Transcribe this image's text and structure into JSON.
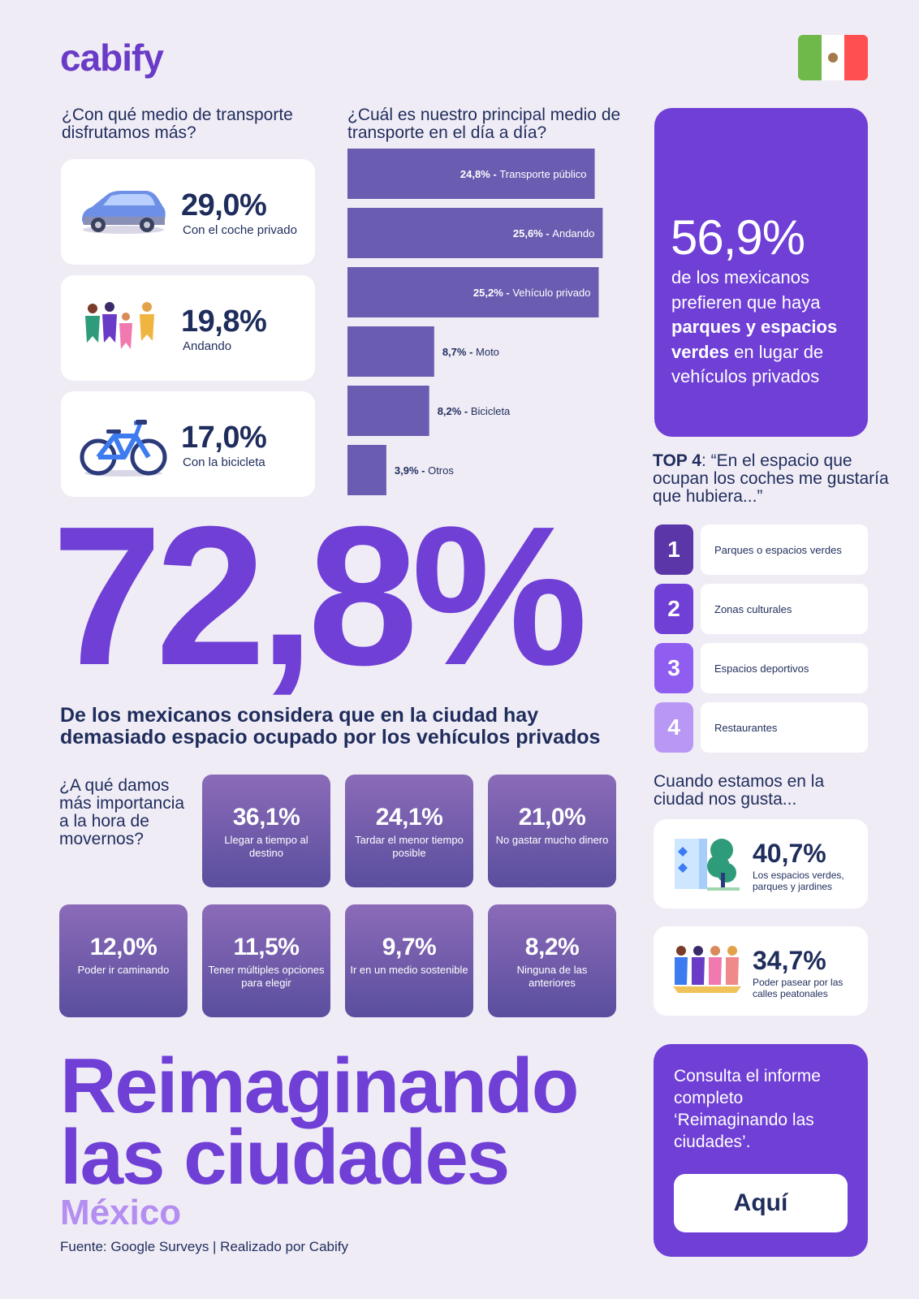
{
  "brand": {
    "logo": "cabify"
  },
  "left_question": "¿Con qué medio de transporte disfrutamos más?",
  "modes": [
    {
      "value": "29,0%",
      "label": "Con el coche privado",
      "icon": "car-icon"
    },
    {
      "value": "19,8%",
      "label": "Andando",
      "icon": "pedestrians-icon"
    },
    {
      "value": "17,0%",
      "label": "Con la bicicleta",
      "icon": "bicycle-icon"
    }
  ],
  "chart_question": "¿Cuál es nuestro principal medio de transporte en el día a día?",
  "chart_data": {
    "type": "bar",
    "orientation": "horizontal",
    "categories": [
      "Transporte público",
      "Andando",
      "Vehículo privado",
      "Moto",
      "Bicicleta",
      "Otros"
    ],
    "values": [
      24.8,
      25.6,
      25.2,
      8.7,
      8.2,
      3.9
    ],
    "value_labels": [
      "24,8%",
      "25,6%",
      "25,2%",
      "8,7%",
      "8,2%",
      "3,9%"
    ],
    "bar_color": "#6a5cb0"
  },
  "highlight": {
    "number": "56,9%",
    "text_before": "de los mexicanos prefieren que haya",
    "text_bold": "parques y espacios verdes",
    "text_after": "en lugar de vehículos privados"
  },
  "top4": {
    "title_bold": "TOP 4",
    "title_rest": ": “En el espacio que ocupan los coches me gustaría que hubiera...”",
    "items": [
      {
        "rank": "1",
        "label": "Parques o espacios verdes",
        "color": "#5b36a8"
      },
      {
        "rank": "2",
        "label": "Zonas culturales",
        "color": "#6f3fd6"
      },
      {
        "rank": "3",
        "label": "Espacios deportivos",
        "color": "#8f5ef0"
      },
      {
        "rank": "4",
        "label": "Restaurantes",
        "color": "#b898f4"
      }
    ]
  },
  "giant_stat": {
    "value": "72,8%",
    "text": "De los mexicanos considera que en la ciudad hay demasiado espacio ocupado por los vehículos privados"
  },
  "importance": {
    "question": "¿A qué damos más importancia a la hora de movernos?",
    "tiles": [
      {
        "value": "36,1%",
        "label": "Llegar a tiempo al destino"
      },
      {
        "value": "24,1%",
        "label": "Tardar el menor tiempo posible"
      },
      {
        "value": "21,0%",
        "label": "No gastar mucho dinero"
      },
      {
        "value": "12,0%",
        "label": "Poder ir caminando"
      },
      {
        "value": "11,5%",
        "label": "Tener múltiples opciones para elegir"
      },
      {
        "value": "9,7%",
        "label": "Ir en un medio sostenible"
      },
      {
        "value": "8,2%",
        "label": "Ninguna de las anteriores"
      }
    ]
  },
  "city": {
    "title": "Cuando estamos en la ciudad nos gusta...",
    "items": [
      {
        "value": "40,7%",
        "label": "Los espacios verdes, parques y jardines",
        "icon": "park-icon"
      },
      {
        "value": "34,7%",
        "label": "Poder pasear por las calles peatonales",
        "icon": "walking-people-icon"
      }
    ]
  },
  "footer": {
    "title_line1": "Reimaginando",
    "title_line2": "las ciudades",
    "country": "México",
    "source": "Fuente: Google Surveys | Realizado por Cabify"
  },
  "cta": {
    "text": "Consulta el informe completo ‘Reimaginando las ciudades’.",
    "button": "Aquí"
  }
}
